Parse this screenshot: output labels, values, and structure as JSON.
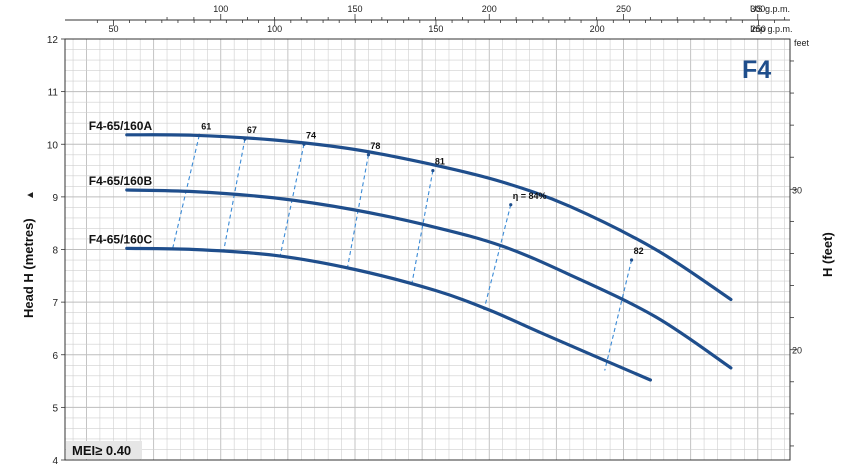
{
  "chart_data": {
    "type": "line",
    "badge": "F4",
    "mei_label": "MEI≥ 0.40",
    "ylabel": "Head H (metres)",
    "ylabel_arrow": "▲",
    "y2label": "H (feet)",
    "y2unit": "feet",
    "x_top_us_label": "US g.p.m.",
    "x_top_imp_label": "Imp g.p.m.",
    "ylim": [
      4,
      12
    ],
    "yticks": [
      4,
      5,
      6,
      7,
      8,
      9,
      10,
      11,
      12
    ],
    "ytick_labels": [
      "4",
      "5",
      "6",
      "7",
      "8",
      "9",
      "10",
      "11",
      "12"
    ],
    "y2ticks": [
      20,
      30
    ],
    "y2tick_labels": [
      "20",
      "30"
    ],
    "us_gpm_ticks": [
      100,
      150,
      200,
      250,
      300
    ],
    "us_gpm_labels": [
      "100",
      "150",
      "200",
      "250",
      "300"
    ],
    "imp_gpm_ticks": [
      50,
      100,
      150,
      200,
      250
    ],
    "imp_gpm_labels": [
      "50",
      "100",
      "150",
      "200",
      "250"
    ],
    "series": [
      {
        "name": "F4-65/160A",
        "points": [
          [
            65,
            10.18
          ],
          [
            90,
            10.17
          ],
          [
            120,
            10.08
          ],
          [
            150,
            9.9
          ],
          [
            180,
            9.6
          ],
          [
            205,
            9.28
          ],
          [
            230,
            8.82
          ],
          [
            262,
            8.0
          ],
          [
            290,
            7.05
          ]
        ]
      },
      {
        "name": "F4-65/160B",
        "points": [
          [
            65,
            9.13
          ],
          [
            90,
            9.1
          ],
          [
            120,
            8.98
          ],
          [
            150,
            8.75
          ],
          [
            180,
            8.42
          ],
          [
            205,
            8.06
          ],
          [
            230,
            7.52
          ],
          [
            262,
            6.72
          ],
          [
            290,
            5.75
          ]
        ]
      },
      {
        "name": "F4-65/160C",
        "points": [
          [
            65,
            8.02
          ],
          [
            90,
            8.0
          ],
          [
            120,
            7.89
          ],
          [
            150,
            7.62
          ],
          [
            180,
            7.22
          ],
          [
            200,
            6.85
          ],
          [
            220,
            6.4
          ],
          [
            260,
            5.52
          ]
        ]
      }
    ],
    "efficiency_lines": [
      {
        "label": "61",
        "q_top": 92,
        "h_top": 10.17,
        "q_bottom": 82,
        "h_bottom": 8.0
      },
      {
        "label": "67",
        "q_top": 109,
        "h_top": 10.1,
        "q_bottom": 101,
        "h_bottom": 7.95
      },
      {
        "label": "74",
        "q_top": 131,
        "h_top": 10.0,
        "q_bottom": 122,
        "h_bottom": 7.85
      },
      {
        "label": "78",
        "q_top": 155,
        "h_top": 9.8,
        "q_bottom": 147,
        "h_bottom": 7.6
      },
      {
        "label": "81",
        "q_top": 179,
        "h_top": 9.5,
        "q_bottom": 171,
        "h_bottom": 7.3
      },
      {
        "label": "η = 84%",
        "q_top": 208,
        "h_top": 8.85,
        "q_bottom": 198,
        "h_bottom": 6.85
      },
      {
        "label": "82",
        "q_top": 253,
        "h_top": 7.8,
        "q_bottom": 243,
        "h_bottom": 5.7
      }
    ]
  }
}
